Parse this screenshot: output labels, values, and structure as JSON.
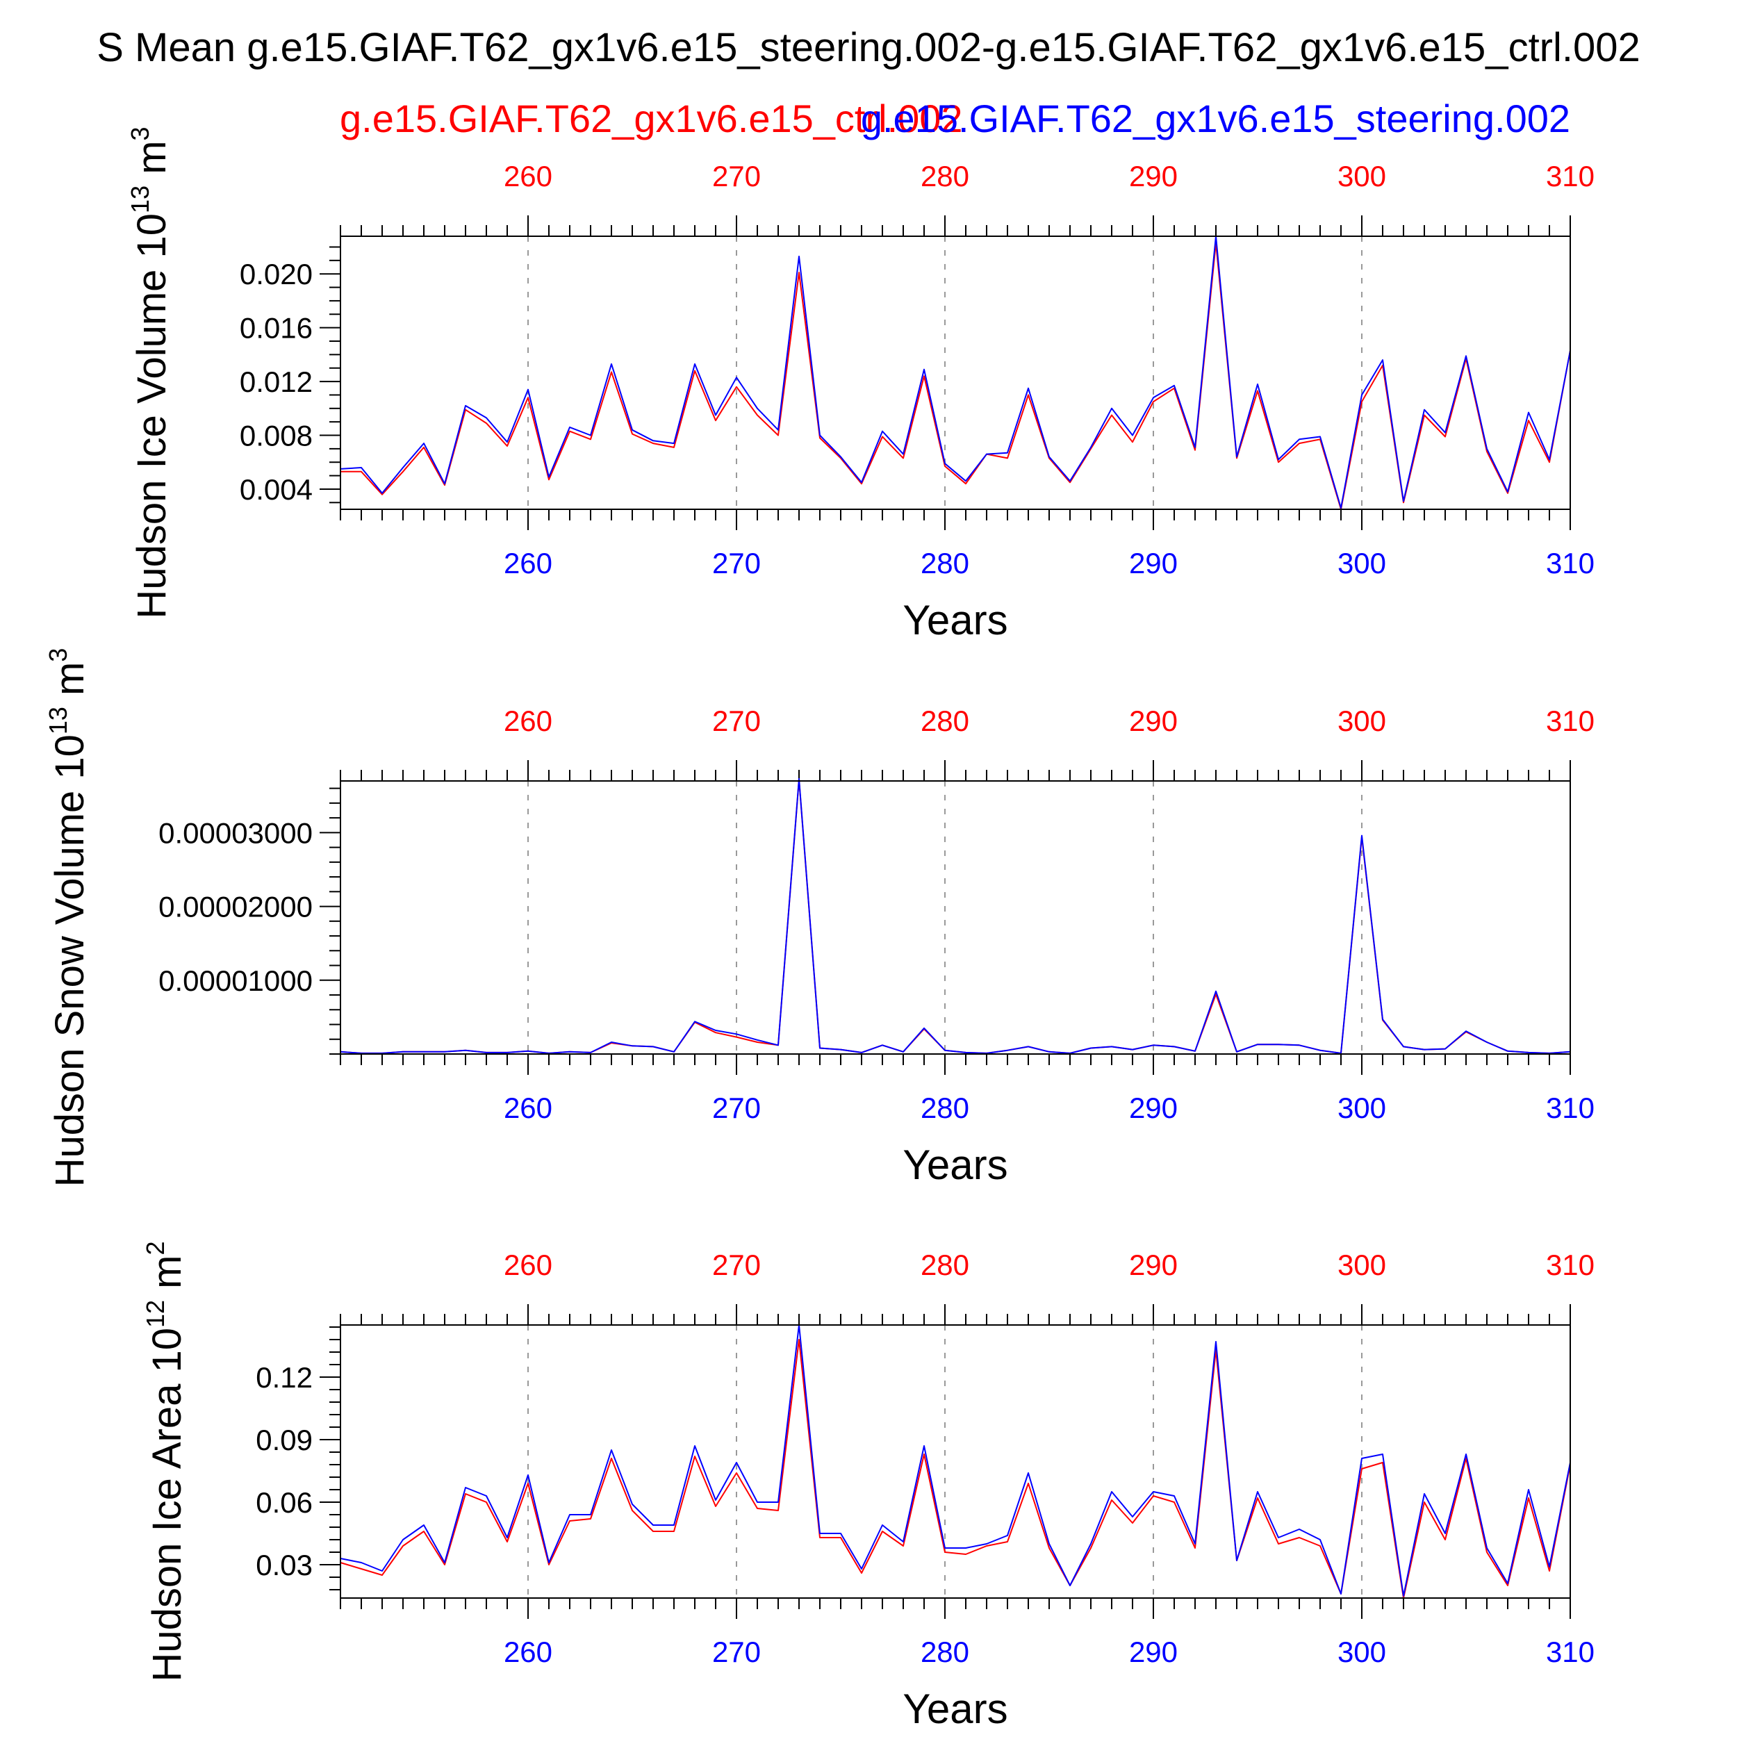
{
  "page_title": "S Mean g.e15.GIAF.T62_gx1v6.e15_steering.002-g.e15.GIAF.T62_gx1v6.e15_ctrl.002",
  "legend": {
    "ctrl_label": "g.e15.GIAF.T62_gx1v6.e15_ctrl.002",
    "steering_label": "g.e15.GIAF.T62_gx1v6.e15_steering.002"
  },
  "colors": {
    "ctrl": "#ff0000",
    "steering": "#0000ff",
    "axis": "#000000",
    "grid": "#999999",
    "background": "#ffffff"
  },
  "chart_data": [
    {
      "type": "line",
      "ylabel": "Hudson Ice Volume",
      "yunit_base": "10",
      "yunit_exp": "13",
      "yunit_tail": "m",
      "yunit_tail_exp": "3",
      "xlabel": "Years",
      "xlim": [
        251,
        310
      ],
      "ylim": [
        0.0025,
        0.0228
      ],
      "xticks": [
        260,
        270,
        280,
        290,
        300,
        310
      ],
      "xtick_labels": [
        "260",
        "270",
        "280",
        "290",
        "300",
        "310"
      ],
      "yticks": [
        0.004,
        0.008,
        0.012,
        0.016,
        0.02
      ],
      "ytick_labels": [
        "0.004",
        "0.008",
        "0.012",
        "0.016",
        "0.020"
      ],
      "yminor_step": 0.001,
      "x": [
        251,
        252,
        253,
        254,
        255,
        256,
        257,
        258,
        259,
        260,
        261,
        262,
        263,
        264,
        265,
        266,
        267,
        268,
        269,
        270,
        271,
        272,
        273,
        274,
        275,
        276,
        277,
        278,
        279,
        280,
        281,
        282,
        283,
        284,
        285,
        286,
        287,
        288,
        289,
        290,
        291,
        292,
        293,
        294,
        295,
        296,
        297,
        298,
        299,
        300,
        301,
        302,
        303,
        304,
        305,
        306,
        307,
        308,
        309,
        310
      ],
      "series": [
        {
          "name": "g.e15.GIAF.T62_gx1v6.e15_ctrl.002",
          "color": "#ff0000",
          "values": [
            0.0053,
            0.0053,
            0.0036,
            0.0053,
            0.0071,
            0.0043,
            0.0099,
            0.0089,
            0.0072,
            0.0108,
            0.0047,
            0.0083,
            0.0077,
            0.0127,
            0.0081,
            0.0074,
            0.0071,
            0.0128,
            0.0091,
            0.0116,
            0.0095,
            0.008,
            0.0201,
            0.0078,
            0.0063,
            0.0044,
            0.0079,
            0.0063,
            0.0124,
            0.0057,
            0.0044,
            0.0066,
            0.0063,
            0.011,
            0.0063,
            0.0045,
            0.007,
            0.0095,
            0.0075,
            0.0105,
            0.0115,
            0.0069,
            0.0223,
            0.0063,
            0.0113,
            0.006,
            0.0074,
            0.0077,
            0.0025,
            0.0105,
            0.0132,
            0.003,
            0.0095,
            0.0079,
            0.0137,
            0.0068,
            0.0037,
            0.0091,
            0.006,
            0.0143
          ]
        },
        {
          "name": "g.e15.GIAF.T62_gx1v6.e15_steering.002",
          "color": "#0000ff",
          "values": [
            0.0055,
            0.0056,
            0.0037,
            0.0056,
            0.0074,
            0.0044,
            0.0102,
            0.0093,
            0.0075,
            0.0114,
            0.0049,
            0.0086,
            0.008,
            0.0133,
            0.0084,
            0.0076,
            0.0074,
            0.0133,
            0.0095,
            0.0123,
            0.01,
            0.0084,
            0.0213,
            0.008,
            0.0064,
            0.0045,
            0.0083,
            0.0066,
            0.0129,
            0.0059,
            0.0046,
            0.0066,
            0.0067,
            0.0115,
            0.0064,
            0.0046,
            0.0071,
            0.01,
            0.008,
            0.0108,
            0.0117,
            0.0071,
            0.0228,
            0.0064,
            0.0118,
            0.0062,
            0.0077,
            0.0079,
            0.0026,
            0.011,
            0.0136,
            0.0031,
            0.0099,
            0.0082,
            0.0139,
            0.007,
            0.0038,
            0.0097,
            0.0062,
            0.0143
          ]
        }
      ]
    },
    {
      "type": "line",
      "ylabel": "Hudson Snow Volume",
      "yunit_base": "10",
      "yunit_exp": "13",
      "yunit_tail": "m",
      "yunit_tail_exp": "3",
      "xlabel": "Years",
      "xlim": [
        251,
        310
      ],
      "ylim": [
        0.0,
        3.7e-05
      ],
      "xticks": [
        260,
        270,
        280,
        290,
        300,
        310
      ],
      "xtick_labels": [
        "260",
        "270",
        "280",
        "290",
        "300",
        "310"
      ],
      "yticks": [
        1e-05,
        2e-05,
        3e-05
      ],
      "ytick_labels": [
        "0.00001000",
        "0.00002000",
        "0.00003000"
      ],
      "yminor_step": 2e-06,
      "x": [
        251,
        252,
        253,
        254,
        255,
        256,
        257,
        258,
        259,
        260,
        261,
        262,
        263,
        264,
        265,
        266,
        267,
        268,
        269,
        270,
        271,
        272,
        273,
        274,
        275,
        276,
        277,
        278,
        279,
        280,
        281,
        282,
        283,
        284,
        285,
        286,
        287,
        288,
        289,
        290,
        291,
        292,
        293,
        294,
        295,
        296,
        297,
        298,
        299,
        300,
        301,
        302,
        303,
        304,
        305,
        306,
        307,
        308,
        309,
        310
      ],
      "series": [
        {
          "name": "g.e15.GIAF.T62_gx1v6.e15_ctrl.002",
          "color": "#ff0000",
          "values": [
            3e-07,
            1e-07,
            1e-07,
            3e-07,
            3e-07,
            3e-07,
            5e-07,
            2e-07,
            2e-07,
            4e-07,
            1e-07,
            3e-07,
            2e-07,
            1.5e-06,
            1.1e-06,
            1e-06,
            3e-07,
            4.3e-06,
            2.9e-06,
            2.3e-06,
            1.6e-06,
            1.2e-06,
            3.72e-05,
            8e-07,
            6e-07,
            2e-07,
            1.2e-06,
            3e-07,
            3.4e-06,
            5e-07,
            2e-07,
            1e-07,
            5e-07,
            1e-06,
            3e-07,
            1e-07,
            8e-07,
            1e-06,
            6e-07,
            1.2e-06,
            1e-06,
            4e-07,
            8.1e-06,
            3e-07,
            1.3e-06,
            1.3e-06,
            1.2e-06,
            5e-07,
            1e-07,
            2.94e-05,
            4.6e-06,
            1e-06,
            6e-07,
            7e-07,
            3e-06,
            1.6e-06,
            4e-07,
            2e-07,
            1e-07,
            3e-07
          ]
        },
        {
          "name": "g.e15.GIAF.T62_gx1v6.e15_steering.002",
          "color": "#0000ff",
          "values": [
            3e-07,
            1e-07,
            1e-07,
            3e-07,
            3e-07,
            3e-07,
            5e-07,
            2e-07,
            2e-07,
            4e-07,
            1e-07,
            3e-07,
            2e-07,
            1.6e-06,
            1.1e-06,
            1e-06,
            3e-07,
            4.4e-06,
            3.2e-06,
            2.7e-06,
            1.9e-06,
            1.2e-06,
            3.73e-05,
            8e-07,
            6e-07,
            2e-07,
            1.2e-06,
            3e-07,
            3.5e-06,
            5e-07,
            2e-07,
            1e-07,
            5e-07,
            1e-06,
            3e-07,
            1e-07,
            8e-07,
            1e-06,
            6e-07,
            1.2e-06,
            1e-06,
            4e-07,
            8.5e-06,
            3e-07,
            1.3e-06,
            1.3e-06,
            1.2e-06,
            5e-07,
            1e-07,
            2.96e-05,
            4.7e-06,
            1e-06,
            6e-07,
            7e-07,
            3.1e-06,
            1.6e-06,
            4e-07,
            2e-07,
            1e-07,
            3e-07
          ]
        }
      ]
    },
    {
      "type": "line",
      "ylabel": "Hudson Ice Area",
      "yunit_base": "10",
      "yunit_exp": "12",
      "yunit_tail": "m",
      "yunit_tail_exp": "2",
      "xlabel": "Years",
      "xlim": [
        251,
        310
      ],
      "ylim": [
        0.014,
        0.145
      ],
      "xticks": [
        260,
        270,
        280,
        290,
        300,
        310
      ],
      "xtick_labels": [
        "260",
        "270",
        "280",
        "290",
        "300",
        "310"
      ],
      "yticks": [
        0.03,
        0.06,
        0.09,
        0.12
      ],
      "ytick_labels": [
        "0.03",
        "0.06",
        "0.09",
        "0.12"
      ],
      "yminor_step": 0.006,
      "x": [
        251,
        252,
        253,
        254,
        255,
        256,
        257,
        258,
        259,
        260,
        261,
        262,
        263,
        264,
        265,
        266,
        267,
        268,
        269,
        270,
        271,
        272,
        273,
        274,
        275,
        276,
        277,
        278,
        279,
        280,
        281,
        282,
        283,
        284,
        285,
        286,
        287,
        288,
        289,
        290,
        291,
        292,
        293,
        294,
        295,
        296,
        297,
        298,
        299,
        300,
        301,
        302,
        303,
        304,
        305,
        306,
        307,
        308,
        309,
        310
      ],
      "series": [
        {
          "name": "g.e15.GIAF.T62_gx1v6.e15_ctrl.002",
          "color": "#ff0000",
          "values": [
            0.031,
            0.028,
            0.025,
            0.039,
            0.046,
            0.03,
            0.064,
            0.06,
            0.041,
            0.069,
            0.03,
            0.051,
            0.052,
            0.081,
            0.056,
            0.046,
            0.046,
            0.082,
            0.058,
            0.074,
            0.057,
            0.056,
            0.138,
            0.043,
            0.043,
            0.026,
            0.046,
            0.039,
            0.083,
            0.036,
            0.035,
            0.039,
            0.041,
            0.069,
            0.038,
            0.02,
            0.038,
            0.061,
            0.05,
            0.063,
            0.06,
            0.038,
            0.133,
            0.032,
            0.062,
            0.04,
            0.043,
            0.039,
            0.016,
            0.076,
            0.079,
            0.014,
            0.06,
            0.042,
            0.081,
            0.036,
            0.02,
            0.062,
            0.027,
            0.078
          ]
        },
        {
          "name": "g.e15.GIAF.T62_gx1v6.e15_steering.002",
          "color": "#0000ff",
          "values": [
            0.033,
            0.031,
            0.027,
            0.042,
            0.049,
            0.031,
            0.067,
            0.063,
            0.043,
            0.073,
            0.031,
            0.054,
            0.054,
            0.085,
            0.059,
            0.049,
            0.049,
            0.087,
            0.061,
            0.079,
            0.06,
            0.06,
            0.145,
            0.045,
            0.045,
            0.028,
            0.049,
            0.041,
            0.087,
            0.038,
            0.038,
            0.04,
            0.044,
            0.074,
            0.04,
            0.02,
            0.04,
            0.065,
            0.053,
            0.065,
            0.063,
            0.04,
            0.137,
            0.032,
            0.065,
            0.043,
            0.047,
            0.042,
            0.016,
            0.081,
            0.083,
            0.015,
            0.064,
            0.045,
            0.083,
            0.038,
            0.021,
            0.066,
            0.029,
            0.079
          ]
        }
      ]
    }
  ]
}
